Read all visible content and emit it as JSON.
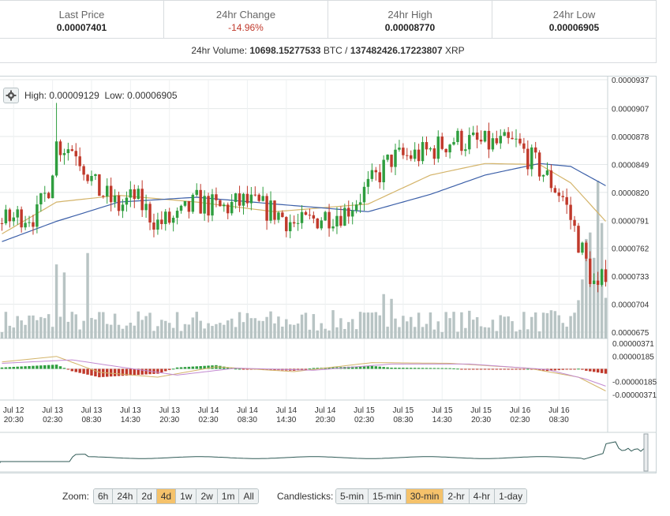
{
  "stats": {
    "last_price": {
      "label": "Last Price",
      "value": "0.00007401"
    },
    "change": {
      "label": "24hr Change",
      "value": "-14.96%"
    },
    "high": {
      "label": "24hr High",
      "value": "0.00008770"
    },
    "low": {
      "label": "24hr Low",
      "value": "0.00006905"
    },
    "volume_label": "24hr Volume:",
    "volume_btc": "10698.15277533",
    "volume_btc_unit": "BTC",
    "volume_sep": "/",
    "volume_xrp": "137482426.17223807",
    "volume_xrp_unit": "XRP"
  },
  "chart_header": {
    "high_label": "High:",
    "high_value": "0.00009129",
    "low_label": "Low:",
    "low_value": "0.00006905"
  },
  "controls": {
    "zoom_label": "Zoom:",
    "zoom_options": [
      "6h",
      "24h",
      "2d",
      "4d",
      "1w",
      "2w",
      "1m",
      "All"
    ],
    "zoom_selected": "4d",
    "candle_label": "Candlesticks:",
    "candle_options": [
      "5-min",
      "15-min",
      "30-min",
      "2-hr",
      "4-hr",
      "1-day"
    ],
    "candle_selected": "30-min"
  },
  "colors": {
    "up": "#2f9e3f",
    "down": "#c0392b",
    "volume": "#b8c4c4",
    "ema_fast": "#d4b46a",
    "ema_slow": "#3b5fa8",
    "macd_line": "#d4b46a",
    "signal_line": "#c28ad1",
    "navigator": "#2f5a56",
    "active_button": "#f5c26b"
  },
  "chart_data": [
    {
      "type": "candlestick",
      "title": "",
      "x_ticks": [
        "Jul 12\n20:30",
        "Jul 13\n02:30",
        "Jul 13\n08:30",
        "Jul 13\n14:30",
        "Jul 13\n20:30",
        "Jul 14\n02:30",
        "Jul 14\n08:30",
        "Jul 14\n14:30",
        "Jul 14\n20:30",
        "Jul 15\n02:30",
        "Jul 15\n08:30",
        "Jul 15\n14:30",
        "Jul 15\n20:30",
        "Jul 16\n02:30",
        "Jul 16\n08:30"
      ],
      "y_ticks": [
        "0.0000937",
        "0.0000907",
        "0.0000878",
        "0.0000849",
        "0.0000820",
        "0.0000791",
        "0.0000762",
        "0.0000733",
        "0.0000704",
        "0.0000675"
      ],
      "ylim": [
        6.75e-05,
        9.37e-05
      ],
      "anchors_close": [
        {
          "i": 0,
          "v": 7.88e-05
        },
        {
          "i": 5,
          "v": 7.97e-05
        },
        {
          "i": 9,
          "v": 7.96e-05
        },
        {
          "i": 12,
          "v": 8.27e-05
        },
        {
          "i": 14,
          "v": 8.7e-05
        },
        {
          "i": 19,
          "v": 8.65e-05
        },
        {
          "i": 24,
          "v": 8.25e-05
        },
        {
          "i": 30,
          "v": 8.05e-05
        },
        {
          "i": 34,
          "v": 8.15e-05
        },
        {
          "i": 40,
          "v": 7.88e-05
        },
        {
          "i": 45,
          "v": 7.92e-05
        },
        {
          "i": 50,
          "v": 8.1e-05
        },
        {
          "i": 56,
          "v": 8.03e-05
        },
        {
          "i": 62,
          "v": 8.1e-05
        },
        {
          "i": 70,
          "v": 8e-05
        },
        {
          "i": 76,
          "v": 7.85e-05
        },
        {
          "i": 82,
          "v": 7.95e-05
        },
        {
          "i": 88,
          "v": 8e-05
        },
        {
          "i": 94,
          "v": 8.25e-05
        },
        {
          "i": 100,
          "v": 8.55e-05
        },
        {
          "i": 108,
          "v": 8.6e-05
        },
        {
          "i": 116,
          "v": 8.75e-05
        },
        {
          "i": 124,
          "v": 8.7e-05
        },
        {
          "i": 132,
          "v": 8.7e-05
        },
        {
          "i": 138,
          "v": 8.45e-05
        },
        {
          "i": 144,
          "v": 8.15e-05
        },
        {
          "i": 148,
          "v": 7.7e-05
        },
        {
          "i": 151,
          "v": 7.35e-05
        },
        {
          "i": 153,
          "v": 7.15e-05
        },
        {
          "i": 155,
          "v": 7.4e-05
        }
      ],
      "spike": {
        "i": 14,
        "high": 9.129e-05
      },
      "ema_fast_anchors": [
        {
          "i": 0,
          "v": 7.77e-05
        },
        {
          "i": 14,
          "v": 8.1e-05
        },
        {
          "i": 30,
          "v": 8.17e-05
        },
        {
          "i": 50,
          "v": 8.1e-05
        },
        {
          "i": 70,
          "v": 8e-05
        },
        {
          "i": 94,
          "v": 8.08e-05
        },
        {
          "i": 110,
          "v": 8.38e-05
        },
        {
          "i": 124,
          "v": 8.5e-05
        },
        {
          "i": 138,
          "v": 8.49e-05
        },
        {
          "i": 146,
          "v": 8.3e-05
        },
        {
          "i": 155,
          "v": 7.9e-05
        }
      ],
      "ema_slow_anchors": [
        {
          "i": 0,
          "v": 7.69e-05
        },
        {
          "i": 14,
          "v": 7.9e-05
        },
        {
          "i": 30,
          "v": 8.1e-05
        },
        {
          "i": 50,
          "v": 8.15e-05
        },
        {
          "i": 70,
          "v": 8.08e-05
        },
        {
          "i": 94,
          "v": 8e-05
        },
        {
          "i": 110,
          "v": 8.18e-05
        },
        {
          "i": 124,
          "v": 8.38e-05
        },
        {
          "i": 138,
          "v": 8.5e-05
        },
        {
          "i": 146,
          "v": 8.47e-05
        },
        {
          "i": 155,
          "v": 8.27e-05
        }
      ]
    },
    {
      "type": "bar",
      "title": "",
      "y_ticks": [
        "0.00000371",
        "0.00000185",
        "-0.00000185",
        "-0.00000371"
      ],
      "ylim": [
        -3.71e-06,
        3.71e-06
      ]
    }
  ]
}
